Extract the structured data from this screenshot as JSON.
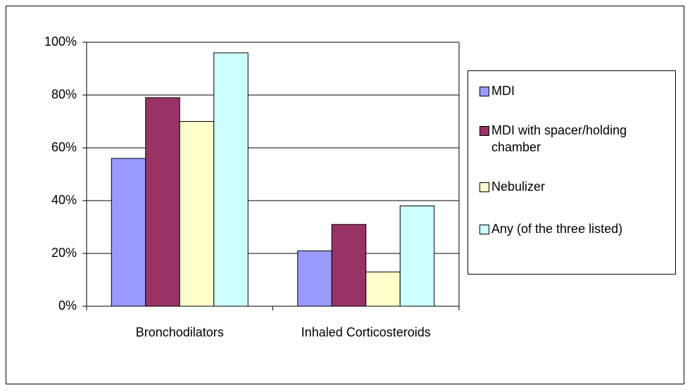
{
  "chart_data": {
    "type": "bar",
    "categories": [
      "Bronchodilators",
      "Inhaled Corticosteroids"
    ],
    "series": [
      {
        "name": "MDI",
        "color": "#9999ff",
        "values": [
          56,
          21
        ]
      },
      {
        "name": "MDI with spacer/holding chamber",
        "color": "#993366",
        "values": [
          79,
          31
        ]
      },
      {
        "name": "Nebulizer",
        "color": "#ffffcc",
        "values": [
          70,
          13
        ]
      },
      {
        "name": "Any (of the three listed)",
        "color": "#ccffff",
        "values": [
          96,
          38
        ]
      }
    ],
    "ylim": [
      0,
      100
    ],
    "yticks": [
      {
        "value": 0,
        "label": "0%"
      },
      {
        "value": 20,
        "label": "20%"
      },
      {
        "value": 40,
        "label": "40%"
      },
      {
        "value": 60,
        "label": "60%"
      },
      {
        "value": 80,
        "label": "80%"
      },
      {
        "value": 100,
        "label": "100%"
      }
    ],
    "grid": true,
    "legend": "right"
  }
}
